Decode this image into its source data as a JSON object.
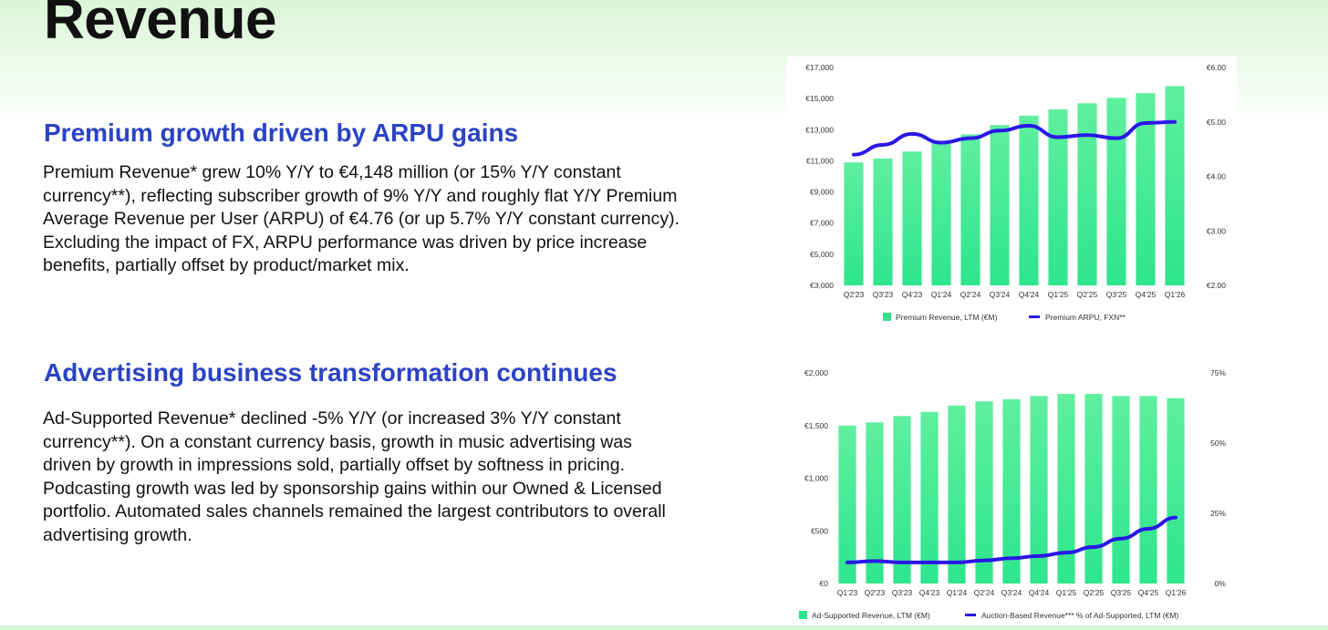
{
  "page": {
    "title": "Revenue",
    "section1": {
      "heading": "Premium growth driven by ARPU gains",
      "body": "Premium Revenue* grew 10% Y/Y to €4,148 million (or 15% Y/Y constant currency**), reflecting subscriber growth of 9% Y/Y and roughly flat Y/Y Premium Average Revenue per User (ARPU) of €4.76 (or up 5.7% Y/Y constant currency). Excluding the impact of FX, ARPU performance was driven by price increase benefits, partially offset by product/market mix."
    },
    "section2": {
      "heading": "Advertising business transformation continues",
      "body": "Ad-Supported Revenue* declined -5% Y/Y (or increased 3% Y/Y constant currency**). On a constant currency basis, growth in music advertising was driven by growth in impressions sold, partially offset by softness in pricing. Podcasting growth was led by sponsorship gains within our Owned & Licensed portfolio. Automated sales channels remained the largest contributors to overall advertising growth."
    }
  },
  "colors": {
    "bar": "#2ee58d",
    "bar_top": "#5fef9f",
    "line": "#2a17e6",
    "heading": "#2b43c4"
  },
  "chart_data": [
    {
      "type": "bar",
      "categories": [
        "Q2'23",
        "Q3'23",
        "Q4'23",
        "Q1'24",
        "Q2'24",
        "Q3'24",
        "Q4'24",
        "Q1'25",
        "Q2'25",
        "Q3'25",
        "Q4'25",
        "Q1'26"
      ],
      "series": [
        {
          "name": "Premium Revenue, LTM (€M)",
          "type": "bar",
          "axis": "left",
          "values": [
            10900,
            11150,
            11600,
            12200,
            12700,
            13300,
            13900,
            14300,
            14700,
            15050,
            15350,
            15800
          ]
        },
        {
          "name": "Premium ARPU, FXN**",
          "type": "line",
          "axis": "right",
          "values": [
            4.4,
            4.58,
            4.78,
            4.62,
            4.7,
            4.84,
            4.93,
            4.72,
            4.76,
            4.7,
            4.98,
            5.0
          ]
        }
      ],
      "y_left": {
        "ticks": [
          3000,
          5000,
          7000,
          9000,
          11000,
          13000,
          15000,
          17000
        ],
        "labels": [
          "€3,000",
          "€5,000",
          "€7,000",
          "€9,000",
          "€11,000",
          "€13,000",
          "€15,000",
          "€17,000"
        ],
        "ylim": [
          3000,
          17000
        ]
      },
      "y_right": {
        "ticks": [
          2,
          3,
          4,
          5,
          6
        ],
        "labels": [
          "€2.00",
          "€3.00",
          "€4.00",
          "€5.00",
          "€6.00"
        ],
        "ylim": [
          2,
          6
        ]
      },
      "legend": "bottom",
      "grid": false
    },
    {
      "type": "bar",
      "categories": [
        "Q1'23",
        "Q2'23",
        "Q3'23",
        "Q4'23",
        "Q1'24",
        "Q2'24",
        "Q3'24",
        "Q4'24",
        "Q1'25",
        "Q2'25",
        "Q3'25",
        "Q4'25",
        "Q1'26"
      ],
      "series": [
        {
          "name": "Ad-Supported Revenue, LTM (€M)",
          "type": "bar",
          "axis": "left",
          "values": [
            1500,
            1530,
            1590,
            1630,
            1690,
            1730,
            1750,
            1780,
            1800,
            1800,
            1780,
            1780,
            1760
          ]
        },
        {
          "name": "Auction-Based Revenue*** % of Ad-Supported, LTM (€M)",
          "type": "line",
          "axis": "right",
          "values": [
            7.5,
            8.0,
            7.5,
            7.5,
            7.5,
            8.2,
            9.0,
            9.8,
            11.0,
            13.0,
            16.0,
            19.5,
            23.5
          ]
        }
      ],
      "y_left": {
        "ticks": [
          0,
          500,
          1000,
          1500,
          2000
        ],
        "labels": [
          "€0",
          "€500",
          "€1,000",
          "€1,500",
          "€2,000"
        ],
        "ylim": [
          0,
          2000
        ]
      },
      "y_right": {
        "ticks": [
          0,
          25,
          50,
          75
        ],
        "labels": [
          "0%",
          "25%",
          "50%",
          "75%"
        ],
        "ylim": [
          0,
          75
        ]
      },
      "legend": "bottom",
      "grid": false
    }
  ]
}
